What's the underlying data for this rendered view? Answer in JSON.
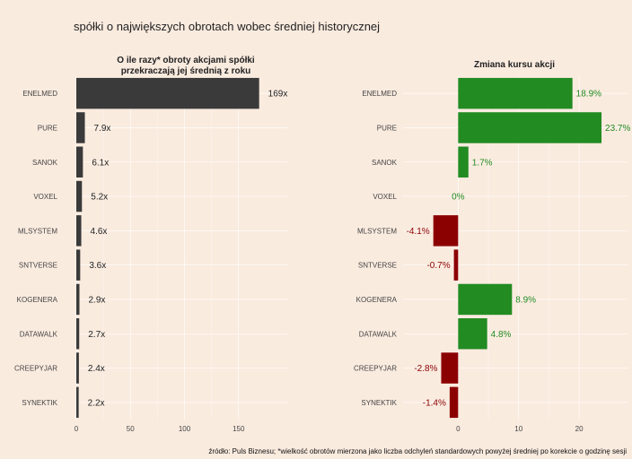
{
  "title": "spółki o największych obrotach wobec średniej historycznej",
  "source": "źródło: Puls Biznesu; *wielkość obrotów mierzona jako liczba odchyleń standardowych powyżej średniej po korekcie o godzinę sesji",
  "colors": {
    "background": "#faebdf",
    "bar_dark": "#3a3a3a",
    "positive": "#228b22",
    "negative": "#8b0000",
    "grid": "#ffffff"
  },
  "chart_data": [
    {
      "type": "bar",
      "orientation": "horizontal",
      "title_lines": [
        "O ile razy* obroty akcjami spółki",
        "przekraczają jej średnią z roku"
      ],
      "categories": [
        "ENELMED",
        "PURE",
        "SANOK",
        "VOXEL",
        "MLSYSTEM",
        "SNTVERSE",
        "KOGENERA",
        "DATAWALK",
        "CREEPYJAR",
        "SYNEKTIK"
      ],
      "values": [
        169,
        7.9,
        6.1,
        5.2,
        4.6,
        3.6,
        2.9,
        2.7,
        2.4,
        2.2
      ],
      "labels": [
        "169x",
        "7.9x",
        "6.1x",
        "5.2x",
        "4.6x",
        "3.6x",
        "2.9x",
        "2.7x",
        "2.4x",
        "2.2x"
      ],
      "xlim": [
        0,
        195
      ],
      "xticks": [
        0,
        50,
        100,
        150
      ],
      "xtick_labels": [
        "0",
        "50",
        "100",
        "150"
      ],
      "grid": true
    },
    {
      "type": "bar",
      "orientation": "horizontal",
      "title_lines": [
        "Zmiana kursu akcji"
      ],
      "categories": [
        "ENELMED",
        "PURE",
        "SANOK",
        "VOXEL",
        "MLSYSTEM",
        "SNTVERSE",
        "KOGENERA",
        "DATAWALK",
        "CREEPYJAR",
        "SYNEKTIK"
      ],
      "values": [
        18.9,
        23.7,
        1.7,
        0,
        -4.1,
        -0.7,
        8.9,
        4.8,
        -2.8,
        -1.4
      ],
      "labels": [
        "18.9%",
        "23.7%",
        "1.7%",
        "0%",
        "-4.1%",
        "-0.7%",
        "8.9%",
        "4.8%",
        "-2.8%",
        "-1.4%"
      ],
      "xlim": [
        -9.1,
        28
      ],
      "xticks": [
        0,
        10,
        20
      ],
      "xtick_labels": [
        "0",
        "10",
        "20"
      ],
      "grid": true
    }
  ]
}
